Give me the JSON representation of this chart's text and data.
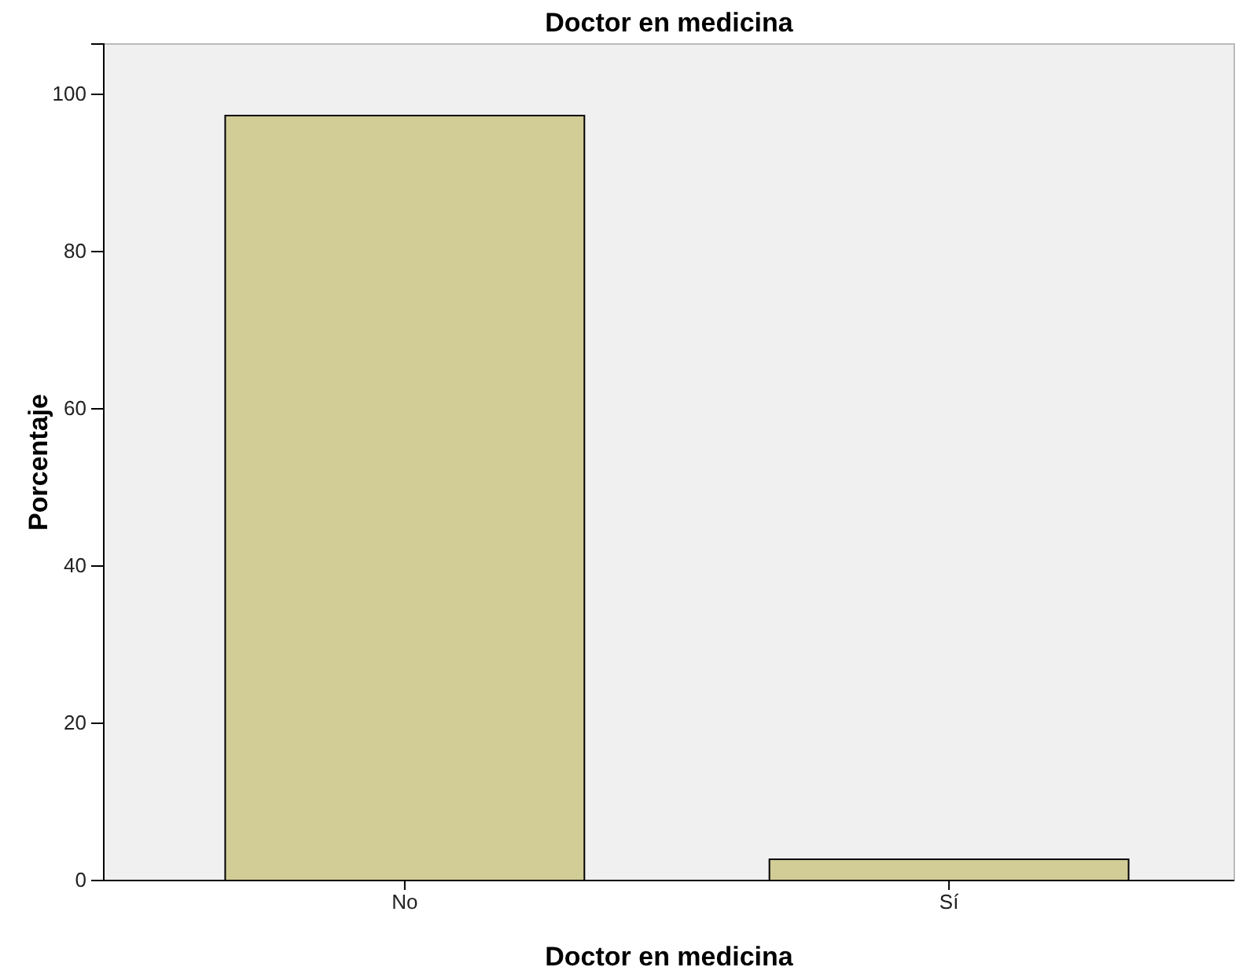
{
  "chart_data": {
    "type": "bar",
    "title": "Doctor en medicina",
    "xlabel": "Doctor en medicina",
    "ylabel": "Porcentaje",
    "categories": [
      "No",
      "Sí"
    ],
    "values": [
      97.3,
      2.7
    ],
    "color": "#d2cd96",
    "ylim": [
      0,
      106.4
    ],
    "yticks": [
      0,
      20,
      40,
      60,
      80,
      100
    ],
    "grid": false
  }
}
